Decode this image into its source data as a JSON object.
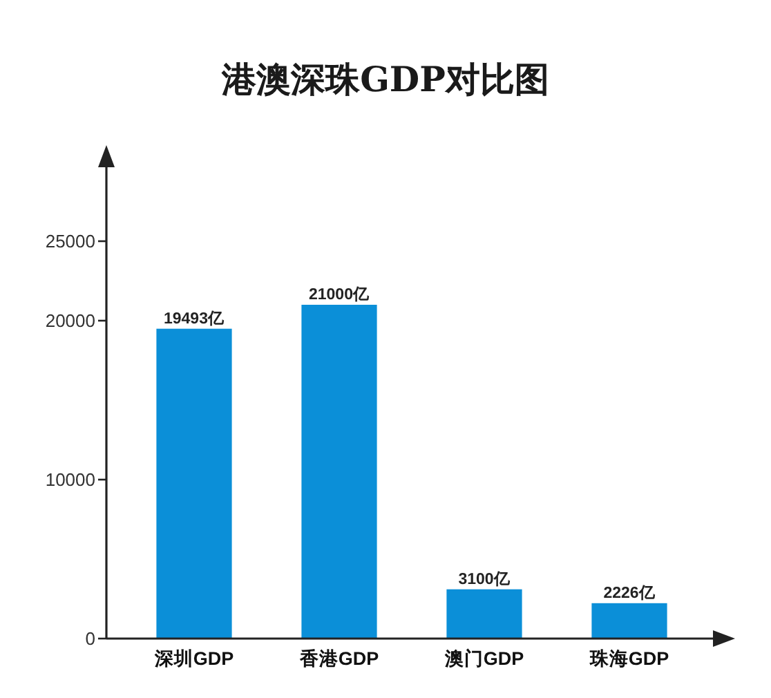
{
  "chart_data": {
    "type": "bar",
    "title": "港澳深珠GDP对比图",
    "categories": [
      "深圳GDP",
      "香港GDP",
      "澳门GDP",
      "珠海GDP"
    ],
    "values": [
      19493,
      21000,
      3100,
      2226
    ],
    "value_labels": [
      "19493亿",
      "21000亿",
      "3100亿",
      "2226亿"
    ],
    "color": "#0b8fd8",
    "ylim": [
      0,
      30000
    ],
    "yticks": [
      0,
      10000,
      20000,
      25000
    ]
  }
}
